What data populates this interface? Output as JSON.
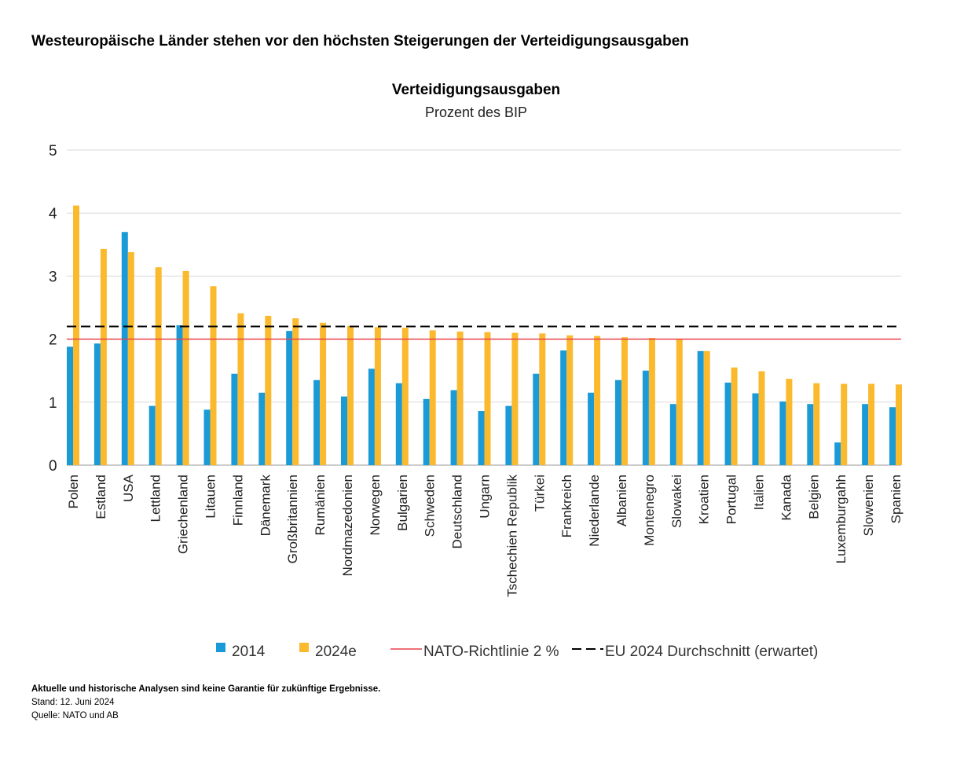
{
  "headline": "Westeuropäische Länder stehen vor den höchsten Steigerungen der Verteidigungsausgaben",
  "footer": {
    "disclaimer": "Aktuelle und historische Analysen sind keine Garantie für zukünftige Ergebnisse.",
    "date": "Stand: 12. Juni 2024",
    "source": "Quelle: NATO und AB"
  },
  "chart_data": {
    "type": "bar",
    "title": "Verteidigungsausgaben",
    "subtitle": "Prozent des BIP",
    "ylim": [
      0,
      5
    ],
    "yticks": [
      "0",
      "1",
      "2",
      "3",
      "4",
      "5"
    ],
    "grid": true,
    "legend_position": "bottom",
    "categories": [
      "Polen",
      "Estland",
      "USA",
      "Lettland",
      "Griechenland",
      "Litauen",
      "Finnland",
      "Dänemark",
      "Großbritannien",
      "Rumänien",
      "Nordmazedonien",
      "Norwegen",
      "Bulgarien",
      "Schweden",
      "Deutschland",
      "Ungarn",
      "Tschechien Republik",
      "Türkei",
      "Frankreich",
      "Niederlande",
      "Albanien",
      "Montenegro",
      "Slowakei",
      "Kroatien",
      "Portugal",
      "Italien",
      "Kanada",
      "Belgien",
      "Luxemburgahh",
      "Slowenien",
      "Spanien"
    ],
    "series": [
      {
        "name": "2014",
        "color": "#1a9bd7",
        "values": [
          1.88,
          1.93,
          3.7,
          0.94,
          2.22,
          0.88,
          1.45,
          1.15,
          2.13,
          1.35,
          1.09,
          1.53,
          1.3,
          1.05,
          1.19,
          0.86,
          0.94,
          1.45,
          1.82,
          1.15,
          1.35,
          1.5,
          0.97,
          1.81,
          1.31,
          1.14,
          1.01,
          0.97,
          0.36,
          0.97,
          0.92
        ]
      },
      {
        "name": "2024e",
        "color": "#fbb92e",
        "values": [
          4.12,
          3.43,
          3.38,
          3.14,
          3.08,
          2.84,
          2.41,
          2.37,
          2.33,
          2.26,
          2.21,
          2.19,
          2.18,
          2.14,
          2.12,
          2.11,
          2.1,
          2.09,
          2.06,
          2.05,
          2.03,
          2.02,
          2.0,
          1.81,
          1.55,
          1.49,
          1.37,
          1.3,
          1.29,
          1.29,
          1.28
        ]
      }
    ],
    "reference_lines": [
      {
        "name": "NATO-Richtlinie 2 %",
        "value": 2.0,
        "color": "#e8424b",
        "style": "solid"
      },
      {
        "name": "EU 2024 Durchschnitt (erwartet)",
        "value": 2.2,
        "color": "#000000",
        "style": "dashed"
      }
    ]
  }
}
